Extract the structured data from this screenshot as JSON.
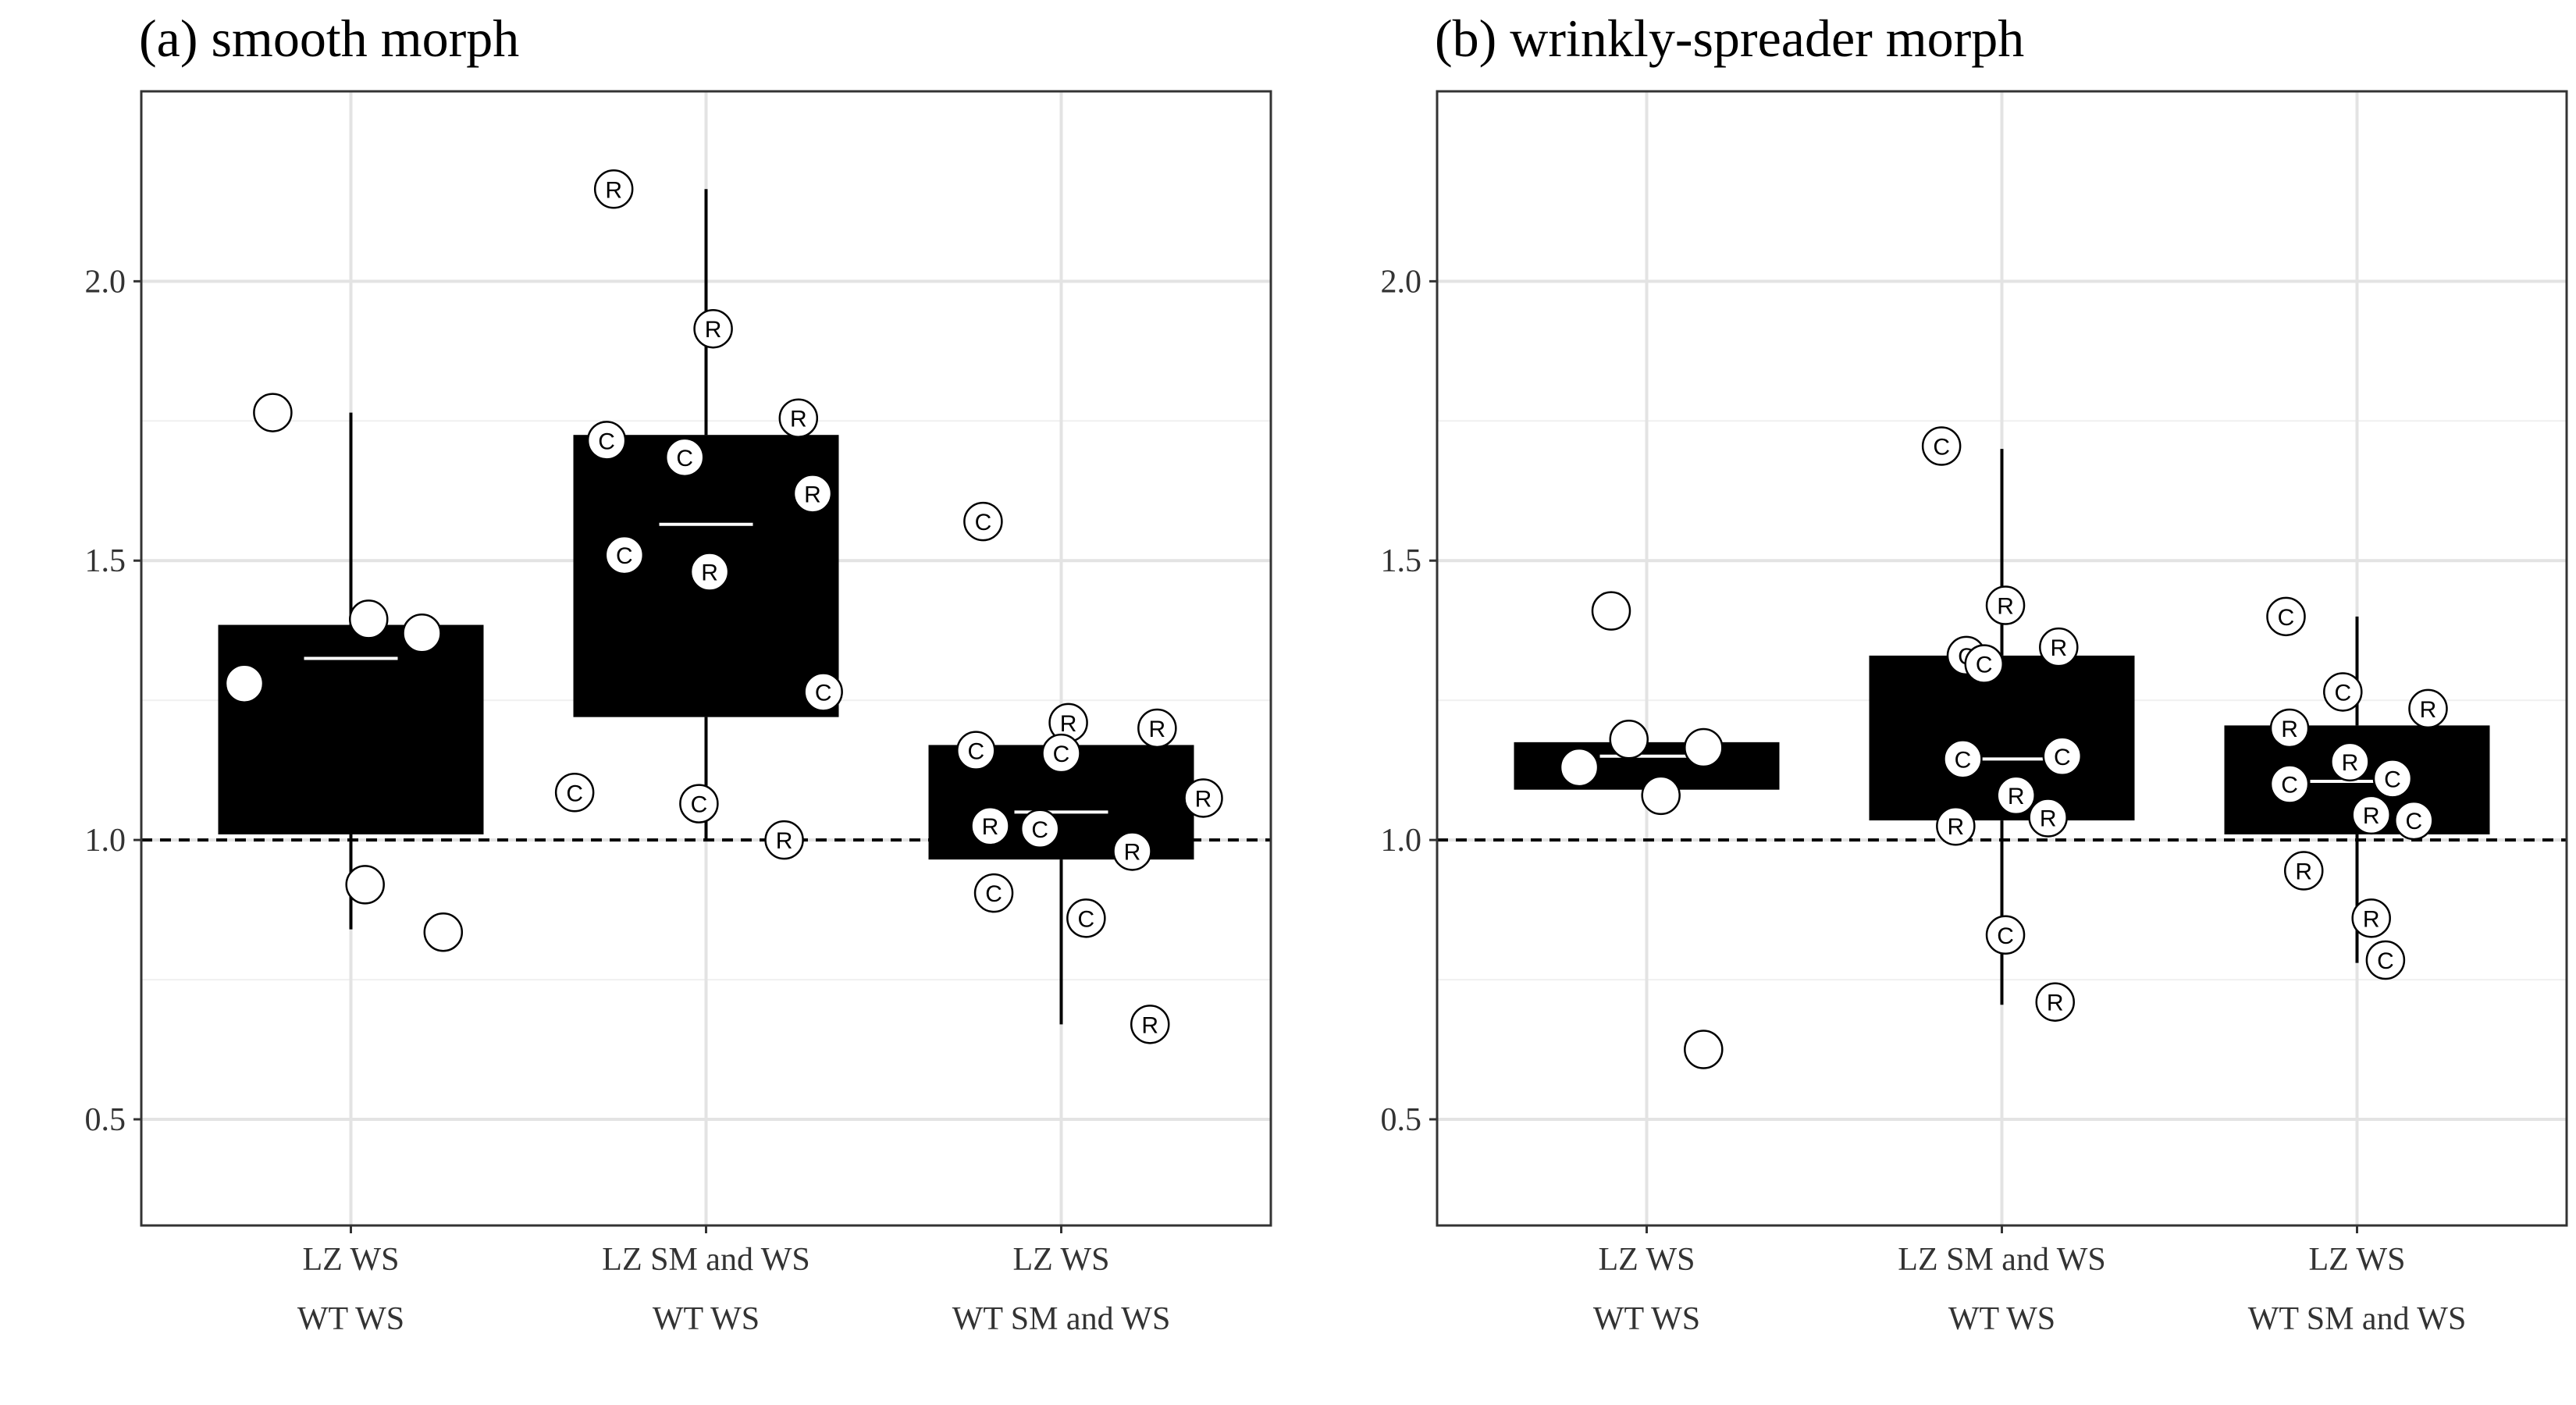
{
  "chart_data": [
    {
      "type": "box",
      "title": "(a) smooth morph",
      "xlabel": "",
      "ylabel": "",
      "ylim": [
        0.31,
        2.34
      ],
      "yticks": [
        0.5,
        1.0,
        1.5,
        2.0
      ],
      "ytick_labels": [
        "0.5",
        "1.0",
        "1.5",
        "2.0"
      ],
      "reference_line": 1.0,
      "grid": true,
      "categories": [
        {
          "line1": "LZ WS",
          "line2": "WT WS"
        },
        {
          "line1": "LZ SM and WS",
          "line2": "WT WS"
        },
        {
          "line1": "LZ WS",
          "line2": "WT SM and WS"
        }
      ],
      "boxes": [
        {
          "q1": 1.01,
          "median": 1.325,
          "q3": 1.385,
          "whisker_low": 0.84,
          "whisker_high": 1.765
        },
        {
          "q1": 1.22,
          "median": 1.565,
          "q3": 1.725,
          "whisker_low": 1.0,
          "whisker_high": 2.165
        },
        {
          "q1": 0.965,
          "median": 1.05,
          "q3": 1.17,
          "whisker_low": 0.67,
          "whisker_high": 1.22
        }
      ],
      "points": [
        {
          "cat": 0,
          "dx": -0.22,
          "y": 1.765,
          "label": ""
        },
        {
          "cat": 0,
          "dx": 0.05,
          "y": 1.395,
          "label": ""
        },
        {
          "cat": 0,
          "dx": 0.2,
          "y": 1.37,
          "label": ""
        },
        {
          "cat": 0,
          "dx": -0.3,
          "y": 1.28,
          "label": ""
        },
        {
          "cat": 0,
          "dx": 0.04,
          "y": 0.92,
          "label": ""
        },
        {
          "cat": 0,
          "dx": 0.26,
          "y": 0.835,
          "label": ""
        },
        {
          "cat": 1,
          "dx": -0.26,
          "y": 2.165,
          "label": "R"
        },
        {
          "cat": 1,
          "dx": 0.02,
          "y": 1.915,
          "label": "R"
        },
        {
          "cat": 1,
          "dx": 0.26,
          "y": 1.755,
          "label": "R"
        },
        {
          "cat": 1,
          "dx": -0.28,
          "y": 1.715,
          "label": "C"
        },
        {
          "cat": 1,
          "dx": -0.06,
          "y": 1.685,
          "label": "C"
        },
        {
          "cat": 1,
          "dx": 0.3,
          "y": 1.62,
          "label": "R"
        },
        {
          "cat": 1,
          "dx": -0.23,
          "y": 1.51,
          "label": "C"
        },
        {
          "cat": 1,
          "dx": 0.01,
          "y": 1.48,
          "label": "R"
        },
        {
          "cat": 1,
          "dx": 0.33,
          "y": 1.265,
          "label": "C"
        },
        {
          "cat": 1,
          "dx": -0.37,
          "y": 1.085,
          "label": "C"
        },
        {
          "cat": 1,
          "dx": -0.02,
          "y": 1.065,
          "label": "C"
        },
        {
          "cat": 1,
          "dx": 0.22,
          "y": 1.0,
          "label": "R"
        },
        {
          "cat": 2,
          "dx": -0.22,
          "y": 1.57,
          "label": "C"
        },
        {
          "cat": 2,
          "dx": 0.02,
          "y": 1.21,
          "label": "R"
        },
        {
          "cat": 2,
          "dx": 0.27,
          "y": 1.2,
          "label": "R"
        },
        {
          "cat": 2,
          "dx": -0.24,
          "y": 1.16,
          "label": "C"
        },
        {
          "cat": 2,
          "dx": 0.0,
          "y": 1.155,
          "label": "C"
        },
        {
          "cat": 2,
          "dx": 0.4,
          "y": 1.075,
          "label": "R"
        },
        {
          "cat": 2,
          "dx": -0.2,
          "y": 1.025,
          "label": "R"
        },
        {
          "cat": 2,
          "dx": -0.06,
          "y": 1.02,
          "label": "C"
        },
        {
          "cat": 2,
          "dx": 0.2,
          "y": 0.98,
          "label": "R"
        },
        {
          "cat": 2,
          "dx": -0.19,
          "y": 0.905,
          "label": "C"
        },
        {
          "cat": 2,
          "dx": 0.07,
          "y": 0.86,
          "label": "C"
        },
        {
          "cat": 2,
          "dx": 0.25,
          "y": 0.67,
          "label": "R"
        }
      ]
    },
    {
      "type": "box",
      "title": "(b) wrinkly-spreader morph",
      "xlabel": "",
      "ylabel": "",
      "ylim": [
        0.31,
        2.34
      ],
      "yticks": [
        0.5,
        1.0,
        1.5,
        2.0
      ],
      "ytick_labels": [
        "0.5",
        "1.0",
        "1.5",
        "2.0"
      ],
      "reference_line": 1.0,
      "grid": true,
      "categories": [
        {
          "line1": "LZ WS",
          "line2": "WT WS"
        },
        {
          "line1": "LZ SM and WS",
          "line2": "WT WS"
        },
        {
          "line1": "LZ WS",
          "line2": "WT SM and WS"
        }
      ],
      "boxes": [
        {
          "q1": 1.09,
          "median": 1.15,
          "q3": 1.175,
          "whisker_low": null,
          "whisker_high": null
        },
        {
          "q1": 1.035,
          "median": 1.145,
          "q3": 1.33,
          "whisker_low": 0.705,
          "whisker_high": 1.7
        },
        {
          "q1": 1.01,
          "median": 1.105,
          "q3": 1.205,
          "whisker_low": 0.78,
          "whisker_high": 1.4
        }
      ],
      "points": [
        {
          "cat": 0,
          "dx": -0.1,
          "y": 1.41,
          "label": ""
        },
        {
          "cat": 0,
          "dx": -0.05,
          "y": 1.18,
          "label": ""
        },
        {
          "cat": 0,
          "dx": 0.16,
          "y": 1.165,
          "label": ""
        },
        {
          "cat": 0,
          "dx": -0.19,
          "y": 1.13,
          "label": ""
        },
        {
          "cat": 0,
          "dx": 0.04,
          "y": 1.08,
          "label": ""
        },
        {
          "cat": 0,
          "dx": 0.16,
          "y": 0.625,
          "label": ""
        },
        {
          "cat": 1,
          "dx": -0.17,
          "y": 1.705,
          "label": "C"
        },
        {
          "cat": 1,
          "dx": 0.01,
          "y": 1.42,
          "label": "R"
        },
        {
          "cat": 1,
          "dx": 0.16,
          "y": 1.345,
          "label": "R"
        },
        {
          "cat": 1,
          "dx": -0.1,
          "y": 1.33,
          "label": "C"
        },
        {
          "cat": 1,
          "dx": -0.05,
          "y": 1.315,
          "label": "C"
        },
        {
          "cat": 1,
          "dx": -0.11,
          "y": 1.145,
          "label": "C"
        },
        {
          "cat": 1,
          "dx": 0.17,
          "y": 1.15,
          "label": "C"
        },
        {
          "cat": 1,
          "dx": 0.04,
          "y": 1.08,
          "label": "R"
        },
        {
          "cat": 1,
          "dx": 0.13,
          "y": 1.04,
          "label": "R"
        },
        {
          "cat": 1,
          "dx": -0.13,
          "y": 1.025,
          "label": "R"
        },
        {
          "cat": 1,
          "dx": 0.01,
          "y": 0.83,
          "label": "C"
        },
        {
          "cat": 1,
          "dx": 0.15,
          "y": 0.71,
          "label": "R"
        },
        {
          "cat": 2,
          "dx": -0.2,
          "y": 1.4,
          "label": "C"
        },
        {
          "cat": 2,
          "dx": -0.04,
          "y": 1.265,
          "label": "C"
        },
        {
          "cat": 2,
          "dx": 0.2,
          "y": 1.235,
          "label": "R"
        },
        {
          "cat": 2,
          "dx": -0.19,
          "y": 1.2,
          "label": "R"
        },
        {
          "cat": 2,
          "dx": -0.02,
          "y": 1.14,
          "label": "R"
        },
        {
          "cat": 2,
          "dx": 0.1,
          "y": 1.11,
          "label": "C"
        },
        {
          "cat": 2,
          "dx": -0.19,
          "y": 1.1,
          "label": "C"
        },
        {
          "cat": 2,
          "dx": 0.04,
          "y": 1.045,
          "label": "R"
        },
        {
          "cat": 2,
          "dx": 0.16,
          "y": 1.035,
          "label": "C"
        },
        {
          "cat": 2,
          "dx": -0.15,
          "y": 0.945,
          "label": "R"
        },
        {
          "cat": 2,
          "dx": 0.04,
          "y": 0.86,
          "label": "R"
        },
        {
          "cat": 2,
          "dx": 0.08,
          "y": 0.785,
          "label": "C"
        }
      ]
    }
  ]
}
